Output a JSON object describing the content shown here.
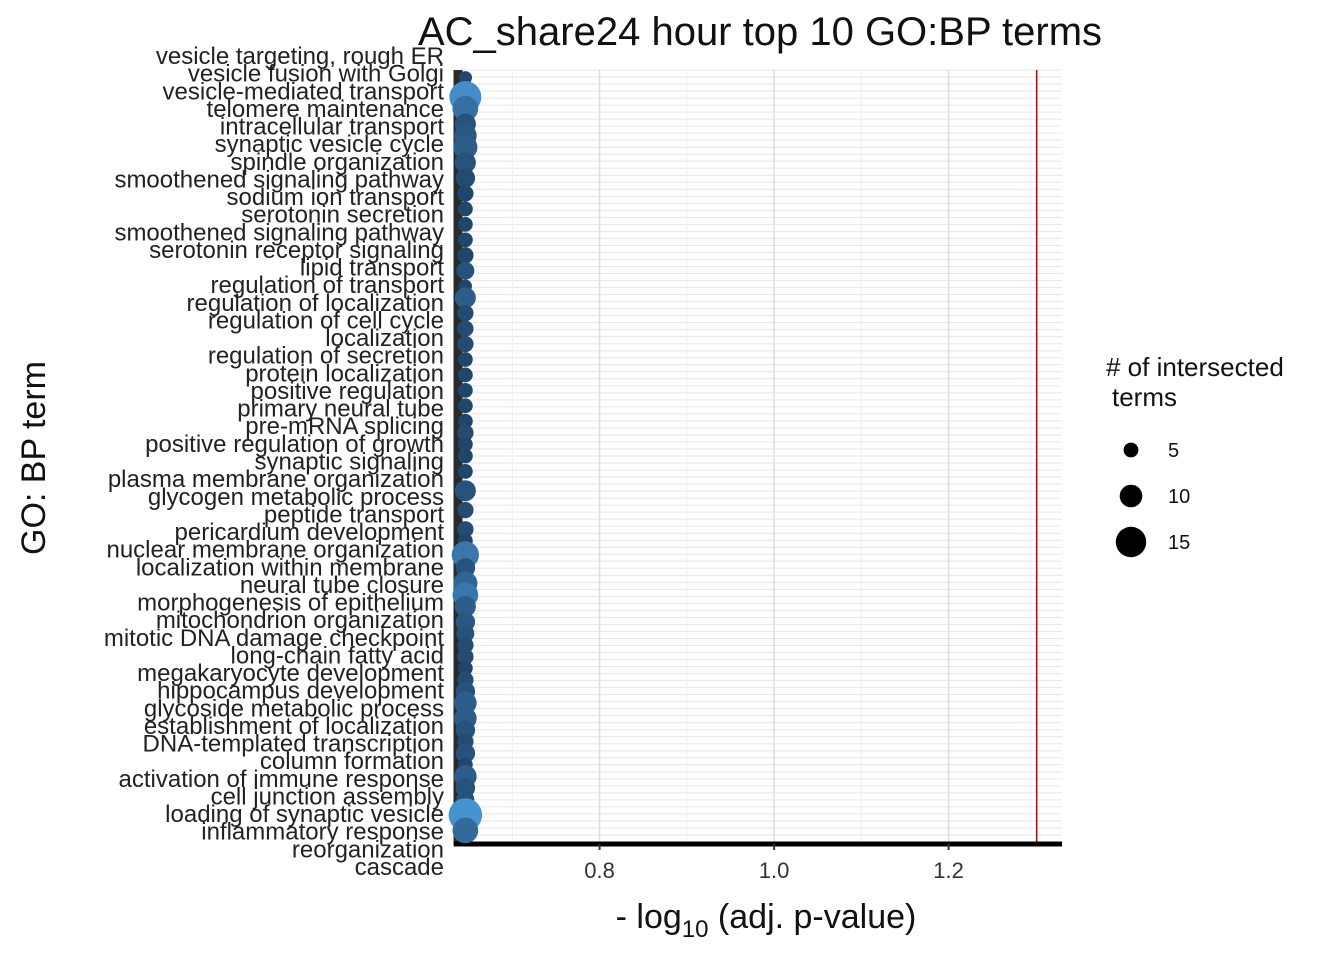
{
  "chart_data": {
    "type": "scatter",
    "title": "AC_share24 hour top 10 GO:BP terms",
    "xlabel_prefix": "- log",
    "xlabel_sub": "10",
    "xlabel_suffix": " (adj. p-value)",
    "ylabel": "GO: BP term",
    "xlim": [
      0.64,
      1.33
    ],
    "x_ticks": [
      0.8,
      1.0,
      1.2
    ],
    "x_tick_labels": [
      "0.8",
      "1.0",
      "1.2"
    ],
    "threshold_line": 1.301,
    "threshold_color": "#cc0000",
    "color_low": "#1b3a5c",
    "color_high": "#56b1f7",
    "y_labels_visible": [
      "vesicle targeting, rough ER",
      "vesicle fusion with Golgi",
      "vesicle-mediated transport",
      "telomere maintenance",
      "intracellular transport",
      "synaptic vesicle cycle",
      "spindle organization",
      "smoothened signaling pathway",
      "sodium ion transport",
      "serotonin secretion",
      "smoothened signaling pathway",
      "serotonin receptor signaling",
      "lipid transport",
      "regulation of transport",
      "regulation of localization",
      "regulation of cell cycle",
      "localization",
      "regulation of secretion",
      "protein localization",
      "positive regulation",
      "primary neural tube",
      "pre-mRNA splicing",
      "positive regulation of growth",
      "synaptic signaling",
      "plasma membrane organization",
      "glycogen metabolic process",
      "peptide transport",
      "pericardium development",
      "nuclear membrane organization",
      "localization within membrane",
      "neural tube closure",
      "morphogenesis of epithelium",
      "mitochondrion organization",
      "mitotic DNA damage checkpoint",
      "long-chain fatty acid",
      "megakaryocyte development",
      "hippocampus development",
      "glycoside metabolic process",
      "establishment of localization",
      "DNA-templated transcription",
      "column formation",
      "activation of immune response",
      "cell junction assembly",
      "loading of synaptic vesicle",
      "inflammatory response",
      "reorganization",
      "cascade"
    ],
    "points": [
      {
        "x": 0.645,
        "y": 0.99,
        "size": 4,
        "intensity": 0.1
      },
      {
        "x": 0.645,
        "y": 0.965,
        "size": 16,
        "intensity": 0.7
      },
      {
        "x": 0.645,
        "y": 0.95,
        "size": 12,
        "intensity": 0.45
      },
      {
        "x": 0.645,
        "y": 0.93,
        "size": 9,
        "intensity": 0.2
      },
      {
        "x": 0.645,
        "y": 0.915,
        "size": 10,
        "intensity": 0.25
      },
      {
        "x": 0.645,
        "y": 0.9,
        "size": 11,
        "intensity": 0.3
      },
      {
        "x": 0.645,
        "y": 0.88,
        "size": 9,
        "intensity": 0.2
      },
      {
        "x": 0.645,
        "y": 0.86,
        "size": 8,
        "intensity": 0.15
      },
      {
        "x": 0.645,
        "y": 0.84,
        "size": 6,
        "intensity": 0.1
      },
      {
        "x": 0.645,
        "y": 0.82,
        "size": 5,
        "intensity": 0.1
      },
      {
        "x": 0.645,
        "y": 0.8,
        "size": 5,
        "intensity": 0.1
      },
      {
        "x": 0.645,
        "y": 0.78,
        "size": 5,
        "intensity": 0.1
      },
      {
        "x": 0.645,
        "y": 0.76,
        "size": 6,
        "intensity": 0.1
      },
      {
        "x": 0.645,
        "y": 0.74,
        "size": 7,
        "intensity": 0.2
      },
      {
        "x": 0.645,
        "y": 0.72,
        "size": 4,
        "intensity": 0.1
      },
      {
        "x": 0.645,
        "y": 0.705,
        "size": 9,
        "intensity": 0.3
      },
      {
        "x": 0.645,
        "y": 0.685,
        "size": 6,
        "intensity": 0.15
      },
      {
        "x": 0.645,
        "y": 0.665,
        "size": 6,
        "intensity": 0.15
      },
      {
        "x": 0.645,
        "y": 0.645,
        "size": 6,
        "intensity": 0.15
      },
      {
        "x": 0.645,
        "y": 0.625,
        "size": 5,
        "intensity": 0.1
      },
      {
        "x": 0.645,
        "y": 0.605,
        "size": 5,
        "intensity": 0.1
      },
      {
        "x": 0.645,
        "y": 0.585,
        "size": 5,
        "intensity": 0.1
      },
      {
        "x": 0.645,
        "y": 0.565,
        "size": 5,
        "intensity": 0.1
      },
      {
        "x": 0.645,
        "y": 0.545,
        "size": 5,
        "intensity": 0.1
      },
      {
        "x": 0.645,
        "y": 0.53,
        "size": 6,
        "intensity": 0.15
      },
      {
        "x": 0.645,
        "y": 0.515,
        "size": 5,
        "intensity": 0.1
      },
      {
        "x": 0.645,
        "y": 0.5,
        "size": 5,
        "intensity": 0.1
      },
      {
        "x": 0.645,
        "y": 0.48,
        "size": 5,
        "intensity": 0.1
      },
      {
        "x": 0.645,
        "y": 0.455,
        "size": 9,
        "intensity": 0.2
      },
      {
        "x": 0.645,
        "y": 0.43,
        "size": 6,
        "intensity": 0.15
      },
      {
        "x": 0.645,
        "y": 0.405,
        "size": 6,
        "intensity": 0.15
      },
      {
        "x": 0.645,
        "y": 0.39,
        "size": 5,
        "intensity": 0.1
      },
      {
        "x": 0.645,
        "y": 0.372,
        "size": 13,
        "intensity": 0.5
      },
      {
        "x": 0.645,
        "y": 0.355,
        "size": 8,
        "intensity": 0.2
      },
      {
        "x": 0.645,
        "y": 0.335,
        "size": 11,
        "intensity": 0.35
      },
      {
        "x": 0.645,
        "y": 0.32,
        "size": 12,
        "intensity": 0.5
      },
      {
        "x": 0.645,
        "y": 0.305,
        "size": 9,
        "intensity": 0.3
      },
      {
        "x": 0.645,
        "y": 0.285,
        "size": 8,
        "intensity": 0.25
      },
      {
        "x": 0.645,
        "y": 0.27,
        "size": 7,
        "intensity": 0.2
      },
      {
        "x": 0.645,
        "y": 0.255,
        "size": 6,
        "intensity": 0.15
      },
      {
        "x": 0.645,
        "y": 0.24,
        "size": 6,
        "intensity": 0.15
      },
      {
        "x": 0.645,
        "y": 0.225,
        "size": 5,
        "intensity": 0.1
      },
      {
        "x": 0.645,
        "y": 0.21,
        "size": 6,
        "intensity": 0.15
      },
      {
        "x": 0.645,
        "y": 0.195,
        "size": 8,
        "intensity": 0.2
      },
      {
        "x": 0.645,
        "y": 0.18,
        "size": 10,
        "intensity": 0.3
      },
      {
        "x": 0.645,
        "y": 0.16,
        "size": 10,
        "intensity": 0.3
      },
      {
        "x": 0.645,
        "y": 0.145,
        "size": 8,
        "intensity": 0.2
      },
      {
        "x": 0.645,
        "y": 0.13,
        "size": 6,
        "intensity": 0.15
      },
      {
        "x": 0.645,
        "y": 0.115,
        "size": 8,
        "intensity": 0.2
      },
      {
        "x": 0.645,
        "y": 0.1,
        "size": 5,
        "intensity": 0.1
      },
      {
        "x": 0.645,
        "y": 0.085,
        "size": 10,
        "intensity": 0.3
      },
      {
        "x": 0.645,
        "y": 0.07,
        "size": 8,
        "intensity": 0.2
      },
      {
        "x": 0.645,
        "y": 0.055,
        "size": 7,
        "intensity": 0.2
      },
      {
        "x": 0.645,
        "y": 0.035,
        "size": 17,
        "intensity": 0.75
      },
      {
        "x": 0.645,
        "y": 0.015,
        "size": 12,
        "intensity": 0.4
      }
    ],
    "legend": {
      "title_line1": "# of intersected",
      "title_line2": "terms",
      "entries": [
        {
          "label": "5",
          "size": 5
        },
        {
          "label": "10",
          "size": 10
        },
        {
          "label": "15",
          "size": 15
        }
      ]
    }
  }
}
